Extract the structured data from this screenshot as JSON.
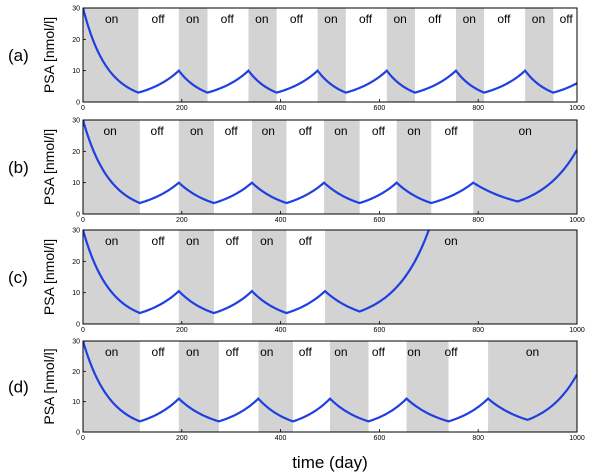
{
  "chart_data": {
    "type": "line",
    "xlabel": "time (day)",
    "series_color": "#1f3fe0",
    "shade_color": "#d3d3d3",
    "panels": [
      {
        "label": "(a)",
        "ylabel": "PSA [nmol/l]",
        "xlim": [
          0,
          1000
        ],
        "ylim": [
          0,
          30
        ],
        "xticks": [
          "0",
          "200",
          "400",
          "600",
          "800",
          "1000"
        ],
        "yticks": [
          "0",
          "10",
          "20",
          "30"
        ],
        "on_periods": [
          [
            0,
            112
          ],
          [
            194,
            252
          ],
          [
            335,
            392
          ],
          [
            475,
            532
          ],
          [
            615,
            672
          ],
          [
            755,
            812
          ],
          [
            895,
            952
          ]
        ],
        "state_labels": [
          {
            "text": "on",
            "x": 58
          },
          {
            "text": "off",
            "x": 152
          },
          {
            "text": "on",
            "x": 222
          },
          {
            "text": "off",
            "x": 292
          },
          {
            "text": "on",
            "x": 362
          },
          {
            "text": "off",
            "x": 432
          },
          {
            "text": "on",
            "x": 502
          },
          {
            "text": "off",
            "x": 572
          },
          {
            "text": "on",
            "x": 642
          },
          {
            "text": "off",
            "x": 712
          },
          {
            "text": "on",
            "x": 782
          },
          {
            "text": "off",
            "x": 852
          },
          {
            "text": "on",
            "x": 922
          },
          {
            "text": "off",
            "x": 978
          }
        ],
        "points": [
          [
            0,
            30
          ],
          [
            112,
            3
          ],
          [
            194,
            10
          ],
          [
            252,
            3
          ],
          [
            335,
            10
          ],
          [
            392,
            3
          ],
          [
            475,
            10
          ],
          [
            532,
            3
          ],
          [
            615,
            10
          ],
          [
            672,
            3
          ],
          [
            755,
            10
          ],
          [
            812,
            3
          ],
          [
            895,
            10
          ],
          [
            952,
            3
          ],
          [
            1000,
            6
          ]
        ]
      },
      {
        "label": "(b)",
        "ylabel": "PSA [nmol/l]",
        "xlim": [
          0,
          1000
        ],
        "ylim": [
          0,
          30
        ],
        "xticks": [
          "0",
          "200",
          "400",
          "600",
          "800",
          "1000"
        ],
        "yticks": [
          "0",
          "10",
          "20",
          "30"
        ],
        "on_periods": [
          [
            0,
            115
          ],
          [
            194,
            265
          ],
          [
            342,
            412
          ],
          [
            488,
            560
          ],
          [
            635,
            705
          ],
          [
            790,
            1000
          ]
        ],
        "state_labels": [
          {
            "text": "on",
            "x": 55
          },
          {
            "text": "off",
            "x": 150
          },
          {
            "text": "on",
            "x": 230
          },
          {
            "text": "off",
            "x": 300
          },
          {
            "text": "on",
            "x": 375
          },
          {
            "text": "off",
            "x": 450
          },
          {
            "text": "on",
            "x": 522
          },
          {
            "text": "off",
            "x": 598
          },
          {
            "text": "on",
            "x": 670
          },
          {
            "text": "off",
            "x": 745
          },
          {
            "text": "on",
            "x": 895
          }
        ],
        "points": [
          [
            0,
            30
          ],
          [
            115,
            3.5
          ],
          [
            194,
            10
          ],
          [
            265,
            3.5
          ],
          [
            342,
            10
          ],
          [
            412,
            3.5
          ],
          [
            488,
            10
          ],
          [
            560,
            3.5
          ],
          [
            635,
            10
          ],
          [
            705,
            3.5
          ],
          [
            790,
            10
          ],
          [
            880,
            4
          ],
          [
            1000,
            20.5
          ]
        ]
      },
      {
        "label": "(c)",
        "ylabel": "PSA [nmol/l]",
        "xlim": [
          0,
          1000
        ],
        "ylim": [
          0,
          30
        ],
        "xticks": [
          "0",
          "200",
          "400",
          "600",
          "800",
          "1000"
        ],
        "yticks": [
          "0",
          "10",
          "20",
          "30"
        ],
        "on_periods": [
          [
            0,
            115
          ],
          [
            194,
            265
          ],
          [
            342,
            412
          ],
          [
            490,
            1000
          ]
        ],
        "state_labels": [
          {
            "text": "on",
            "x": 58
          },
          {
            "text": "off",
            "x": 152
          },
          {
            "text": "on",
            "x": 222
          },
          {
            "text": "off",
            "x": 302
          },
          {
            "text": "on",
            "x": 372
          },
          {
            "text": "off",
            "x": 450
          },
          {
            "text": "on",
            "x": 745
          }
        ],
        "points": [
          [
            0,
            30
          ],
          [
            115,
            3.5
          ],
          [
            194,
            10.5
          ],
          [
            265,
            3.5
          ],
          [
            342,
            10.5
          ],
          [
            412,
            3.5
          ],
          [
            490,
            10.5
          ],
          [
            560,
            4
          ],
          [
            700,
            30
          ]
        ]
      },
      {
        "label": "(d)",
        "ylabel": "PSA [nmol/l]",
        "xlim": [
          0,
          1000
        ],
        "ylim": [
          0,
          30
        ],
        "xticks": [
          "0",
          "200",
          "400",
          "600",
          "800",
          "1000"
        ],
        "yticks": [
          "0",
          "10",
          "20",
          "30"
        ],
        "on_periods": [
          [
            0,
            115
          ],
          [
            194,
            275
          ],
          [
            355,
            425
          ],
          [
            500,
            578
          ],
          [
            655,
            740
          ],
          [
            820,
            1000
          ]
        ],
        "state_labels": [
          {
            "text": "on",
            "x": 58
          },
          {
            "text": "off",
            "x": 152
          },
          {
            "text": "on",
            "x": 222
          },
          {
            "text": "off",
            "x": 302
          },
          {
            "text": "on",
            "x": 372
          },
          {
            "text": "off",
            "x": 450
          },
          {
            "text": "on",
            "x": 522
          },
          {
            "text": "off",
            "x": 598
          },
          {
            "text": "on",
            "x": 670
          },
          {
            "text": "off",
            "x": 745
          },
          {
            "text": "on",
            "x": 910
          }
        ],
        "points": [
          [
            0,
            30
          ],
          [
            115,
            3.5
          ],
          [
            194,
            11
          ],
          [
            275,
            3.5
          ],
          [
            355,
            11
          ],
          [
            425,
            3.5
          ],
          [
            500,
            11
          ],
          [
            578,
            3.5
          ],
          [
            655,
            11
          ],
          [
            740,
            3.5
          ],
          [
            820,
            11
          ],
          [
            900,
            4
          ],
          [
            1000,
            19
          ]
        ]
      }
    ]
  }
}
